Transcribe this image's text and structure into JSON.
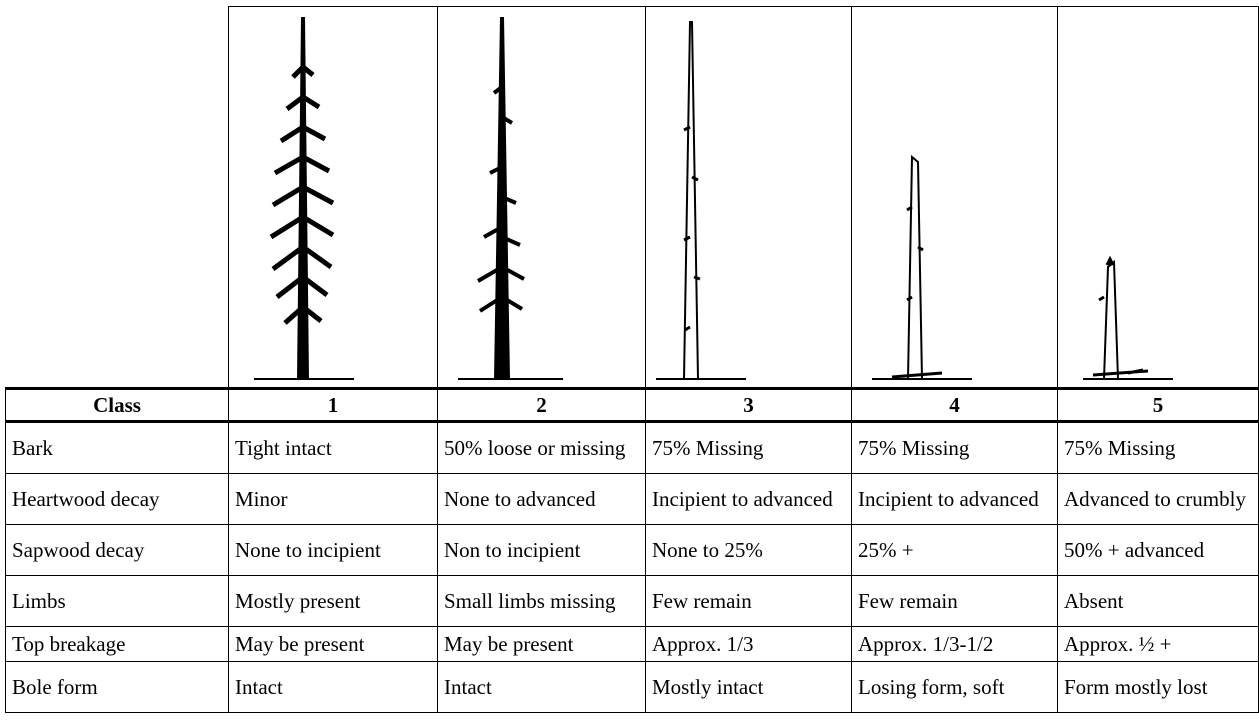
{
  "table": {
    "header": [
      "Class",
      "1",
      "2",
      "3",
      "4",
      "5"
    ],
    "rows": [
      [
        "Bark",
        "Tight intact",
        "50% loose or missing",
        "75% Missing",
        "75% Missing",
        "75% Missing"
      ],
      [
        "Heartwood decay",
        "Minor",
        "None to advanced",
        "Incipient to advanced",
        "Incipient to advanced",
        "Advanced to crumbly"
      ],
      [
        "Sapwood decay",
        "None to incipient",
        "Non to incipient",
        "None to 25%",
        "25% +",
        "50% + advanced"
      ],
      [
        "Limbs",
        "Mostly present",
        "Small limbs missing",
        "Few remain",
        "Few remain",
        "Absent"
      ],
      [
        "Top breakage",
        "May be present",
        "May be present",
        "Approx. 1/3",
        "Approx. 1/3-1/2",
        "Approx. ½ +"
      ],
      [
        "Bole form",
        "Intact",
        "Intact",
        "Mostly intact",
        "Losing form, soft",
        "Form mostly lost"
      ]
    ]
  }
}
